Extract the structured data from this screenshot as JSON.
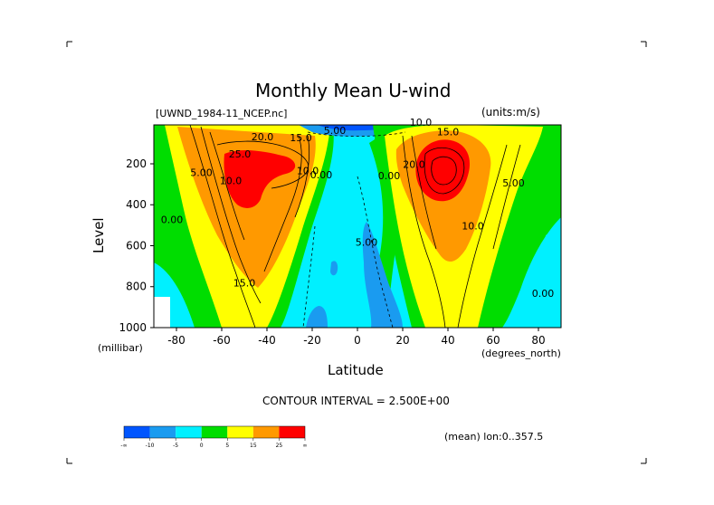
{
  "chart_data": {
    "type": "contour",
    "title": "Monthly Mean U-wind",
    "dataset_label": "[UWND_1984-11_NCEP.nc]",
    "units_label": "(units:m/s)",
    "xlabel": "Latitude",
    "x_units": "(degrees_north)",
    "ylabel": "Level",
    "y_units": "(millibar)",
    "xlim": [
      -90,
      90
    ],
    "ylim": [
      1000,
      10
    ],
    "y_inverted": true,
    "x_ticks": [
      -80,
      -60,
      -40,
      -20,
      0,
      20,
      40,
      60,
      80
    ],
    "y_ticks": [
      200,
      400,
      600,
      800,
      1000
    ],
    "contour_interval_text": "CONTOUR INTERVAL = 2.500E+00",
    "contour_interval": 2.5,
    "mean_note": "(mean) lon:0..357.5",
    "contour_labels": [
      {
        "text": "25.0",
        "lat": -52,
        "lev": 170
      },
      {
        "text": "20.0",
        "lat": -42,
        "lev": 85
      },
      {
        "text": "15.0",
        "lat": -25,
        "lev": 90
      },
      {
        "text": "10.0",
        "lat": -56,
        "lev": 300
      },
      {
        "text": "5.00",
        "lat": -69,
        "lev": 260
      },
      {
        "text": "0.00",
        "lat": -82,
        "lev": 490
      },
      {
        "text": "10.0",
        "lat": -22,
        "lev": 250
      },
      {
        "text": "0.00",
        "lat": -16,
        "lev": 270
      },
      {
        "text": "15.0",
        "lat": -50,
        "lev": 800
      },
      {
        "text": "5.00",
        "lat": -10,
        "lev": 55
      },
      {
        "text": "5.00",
        "lat": 4,
        "lev": 600
      },
      {
        "text": "0.00",
        "lat": 14,
        "lev": 275
      },
      {
        "text": "10.0",
        "lat": 28,
        "lev": 15
      },
      {
        "text": "15.0",
        "lat": 40,
        "lev": 60
      },
      {
        "text": "20.0",
        "lat": 25,
        "lev": 220
      },
      {
        "text": "10.0",
        "lat": 51,
        "lev": 520
      },
      {
        "text": "5.00",
        "lat": 69,
        "lev": 310
      },
      {
        "text": "0.00",
        "lat": 82,
        "lev": 850
      }
    ],
    "colorbar": {
      "labels": [
        "-∞",
        "-10",
        "-5",
        "0",
        "5",
        "15",
        "25",
        "∞"
      ],
      "colors": [
        "#0055ff",
        "#1a9bf0",
        "#00f0ff",
        "#00dd00",
        "#ffff00",
        "#ff9900",
        "#ff0000"
      ]
    },
    "colors": {
      "strong_negative": "#0055ff",
      "negative": "#1a9bf0",
      "weak_negative": "#00f0ff",
      "weak_positive": "#00dd00",
      "moderate": "#ffff00",
      "strong": "#ff9900",
      "jet_core": "#ff0000"
    }
  }
}
